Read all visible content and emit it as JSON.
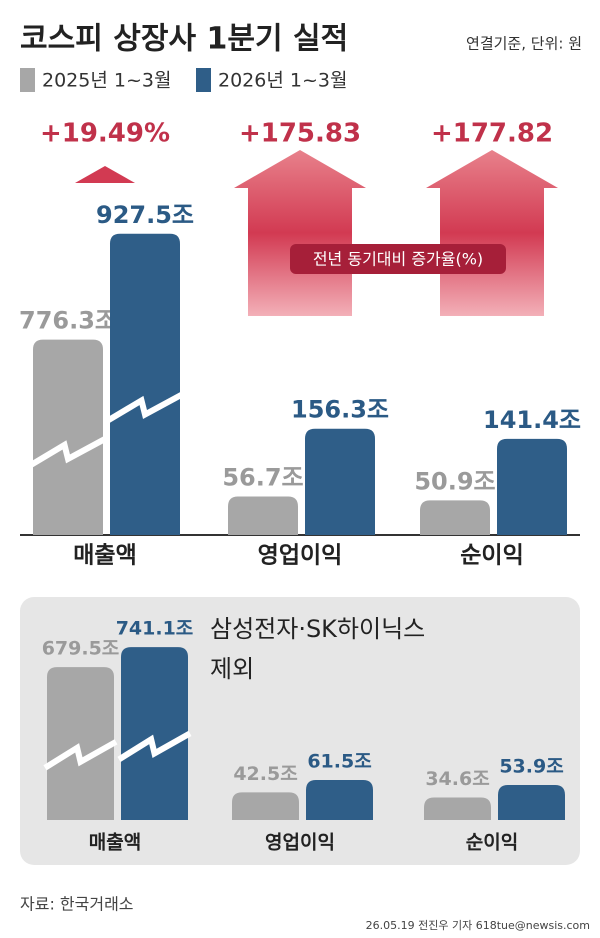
{
  "title": "코스피 상장사 1분기 실적",
  "unit_note": "연결기준, 단위: 원",
  "growth_note": "전년 동기대비 증가율(%)",
  "source": "자료: 한국거래소",
  "credit": "26.05.19 전진우 기자 618tue@newsis.com",
  "chart_data": [
    {
      "type": "bar",
      "categories": [
        "매출액",
        "영업이익",
        "순이익"
      ],
      "series": [
        {
          "name": "2025년 1~3월",
          "color": "#a7a7a7",
          "values": [
            776.3,
            56.7,
            50.9
          ],
          "value_labels": [
            "776.3조",
            "56.7조",
            "50.9조"
          ]
        },
        {
          "name": "2026년 1~3월",
          "color": "#2f5e88",
          "values": [
            927.5,
            156.3,
            141.4
          ],
          "value_labels": [
            "927.5조",
            "156.3조",
            "141.4조"
          ]
        }
      ],
      "annotations": [
        "+19.49%",
        "+175.83",
        "+177.82"
      ]
    },
    {
      "type": "bar",
      "title": [
        "삼성전자·SK하이닉스",
        "제외"
      ],
      "categories": [
        "매출액",
        "영업이익",
        "순이익"
      ],
      "series": [
        {
          "color": "#a7a7a7",
          "values": [
            679.5,
            42.5,
            34.6
          ],
          "value_labels": [
            "679.5조",
            "42.5조",
            "34.6조"
          ]
        },
        {
          "color": "#2f5e88",
          "values": [
            741.1,
            61.5,
            53.9
          ],
          "value_labels": [
            "741.1조",
            "61.5조",
            "53.9조"
          ]
        }
      ]
    }
  ]
}
